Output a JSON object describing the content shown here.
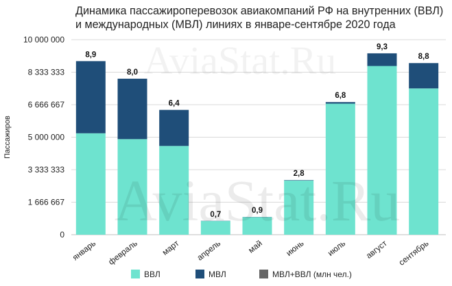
{
  "chart_data": {
    "type": "bar",
    "stacked": true,
    "title": "Динамика пассажироперевозок авиакомпаний РФ на внутренних (ВВЛ) и международных (МВЛ) линиях в январе-сентябре 2020 года",
    "xlabel": "",
    "ylabel": "Пассажиров",
    "ylim": [
      0,
      10000000
    ],
    "yticks": [
      "0",
      "1 666 667",
      "3 333 333",
      "5 000 000",
      "6 666 667",
      "8 333 333",
      "10 000 000"
    ],
    "categories": [
      "январь",
      "февраль",
      "март",
      "апрель",
      "май",
      "июнь",
      "июль",
      "август",
      "сентябрь"
    ],
    "series": [
      {
        "name": "ВВЛ",
        "color": "#6ee3cf",
        "values": [
          5200000,
          4900000,
          4550000,
          700000,
          900000,
          2780000,
          6720000,
          8650000,
          7500000
        ]
      },
      {
        "name": "МВЛ",
        "color": "#1f4e79",
        "values": [
          3700000,
          3100000,
          1850000,
          10000,
          10000,
          20000,
          80000,
          650000,
          1300000
        ]
      },
      {
        "name": "МВЛ+ВВЛ (млн чел.)",
        "color": "#666666",
        "values": [
          8.9,
          8.0,
          6.4,
          0.7,
          0.9,
          2.8,
          6.8,
          9.3,
          8.8
        ],
        "labels": [
          "8,9",
          "8,0",
          "6,4",
          "0,7",
          "0,9",
          "2,8",
          "6,8",
          "9,3",
          "8,8"
        ]
      }
    ],
    "grid": true,
    "legend": "bottom",
    "watermark": "AviaStat.Ru"
  }
}
